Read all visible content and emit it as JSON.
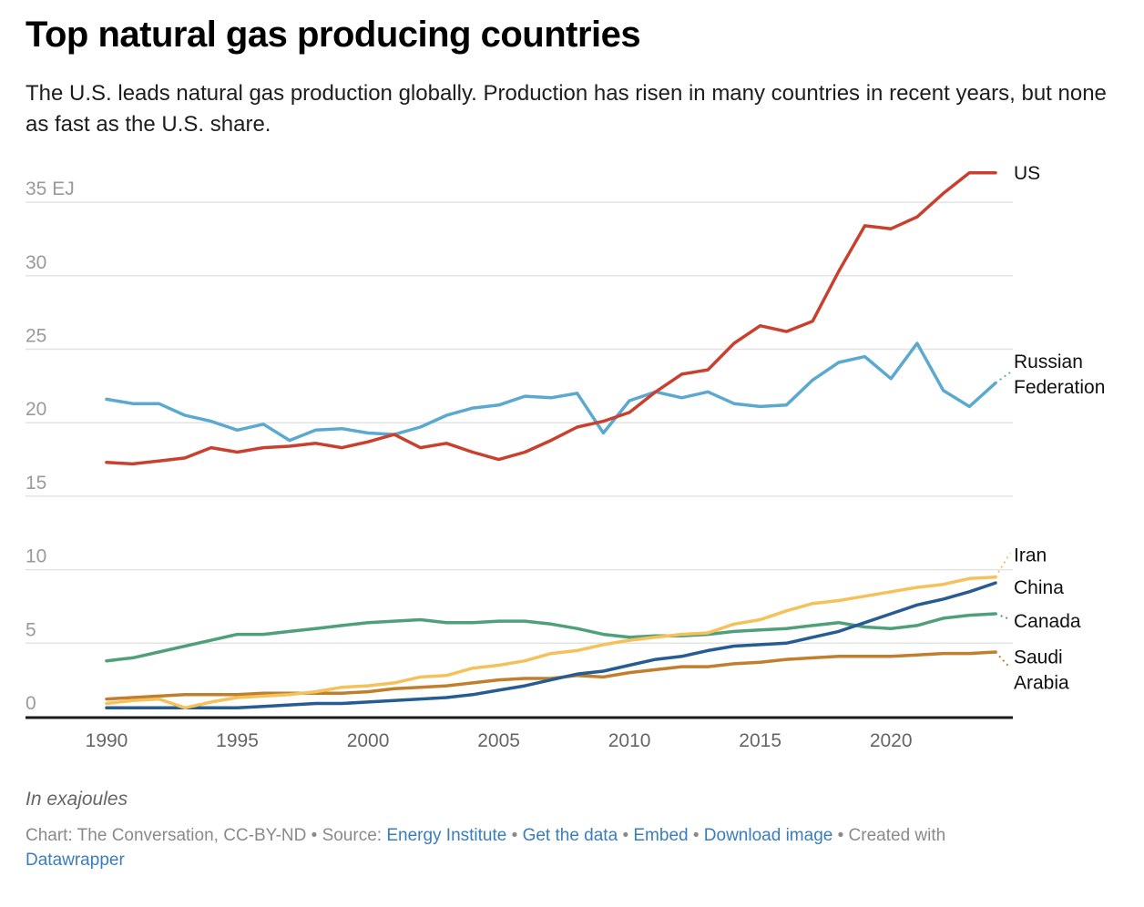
{
  "header": {
    "title": "Top natural gas producing countries",
    "subtitle": "The U.S. leads natural gas production globally. Production has risen in many countries in recent years, but none as fast as the U.S. share."
  },
  "notes": "In exajoules",
  "footer": {
    "chart_credit": "Chart: The Conversation, CC-BY-ND",
    "source_label": "Source:",
    "source_link": "Energy Institute",
    "get_data": "Get the data",
    "embed": "Embed",
    "download": "Download image",
    "created_with": "Created with",
    "datawrapper": "Datawrapper",
    "separator": "•"
  },
  "chart_data": {
    "type": "line",
    "title": "Top natural gas producing countries",
    "xlabel": "",
    "ylabel": "EJ",
    "unit_suffix": "EJ",
    "x": [
      1990,
      1991,
      1992,
      1993,
      1994,
      1995,
      1996,
      1997,
      1998,
      1999,
      2000,
      2001,
      2002,
      2003,
      2004,
      2005,
      2006,
      2007,
      2008,
      2009,
      2010,
      2011,
      2012,
      2013,
      2014,
      2015,
      2016,
      2017,
      2018,
      2019,
      2020,
      2021,
      2022,
      2023,
      2024
    ],
    "xlim": [
      1990,
      2024
    ],
    "ylim": [
      0,
      36.5
    ],
    "xticks": [
      1990,
      1995,
      2000,
      2005,
      2010,
      2015,
      2020
    ],
    "yticks": [
      0,
      5,
      10,
      15,
      20,
      25,
      30,
      35
    ],
    "ytick_labels": [
      "0",
      "5",
      "10",
      "15",
      "20",
      "25",
      "30",
      "35 EJ"
    ],
    "grid": true,
    "legend": "direct labels at line ends (right)",
    "series": [
      {
        "name": "US",
        "label": "US",
        "color": "#c9402f",
        "values": [
          17.3,
          17.2,
          17.4,
          17.6,
          18.3,
          18.0,
          18.3,
          18.4,
          18.6,
          18.3,
          18.7,
          19.2,
          18.3,
          18.6,
          18.0,
          17.5,
          18.0,
          18.8,
          19.7,
          20.1,
          20.7,
          22.1,
          23.3,
          23.6,
          25.4,
          26.6,
          26.2,
          26.9,
          30.3,
          33.4,
          33.2,
          34.0,
          35.6,
          37.0,
          37.0
        ]
      },
      {
        "name": "Russian Federation",
        "label": "Russian\nFederation",
        "color": "#5ba9cf",
        "values": [
          21.6,
          21.3,
          21.3,
          20.5,
          20.1,
          19.5,
          19.9,
          18.8,
          19.5,
          19.6,
          19.3,
          19.2,
          19.7,
          20.5,
          21.0,
          21.2,
          21.8,
          21.7,
          22.0,
          19.3,
          21.5,
          22.1,
          21.7,
          22.1,
          21.3,
          21.1,
          21.2,
          22.9,
          24.1,
          24.5,
          23.0,
          25.4,
          22.2,
          21.1,
          22.7
        ]
      },
      {
        "name": "Iran",
        "label": "Iran",
        "color": "#f4c15a",
        "values": [
          0.9,
          1.1,
          1.2,
          0.6,
          1.0,
          1.3,
          1.4,
          1.5,
          1.7,
          2.0,
          2.1,
          2.3,
          2.7,
          2.8,
          3.3,
          3.5,
          3.8,
          4.3,
          4.5,
          4.9,
          5.2,
          5.4,
          5.6,
          5.7,
          6.3,
          6.6,
          7.2,
          7.7,
          7.9,
          8.2,
          8.5,
          8.8,
          9.0,
          9.4,
          9.5
        ]
      },
      {
        "name": "China",
        "label": "China",
        "color": "#275c92",
        "values": [
          0.6,
          0.6,
          0.6,
          0.6,
          0.6,
          0.6,
          0.7,
          0.8,
          0.9,
          0.9,
          1.0,
          1.1,
          1.2,
          1.3,
          1.5,
          1.8,
          2.1,
          2.5,
          2.9,
          3.1,
          3.5,
          3.9,
          4.1,
          4.5,
          4.8,
          4.9,
          5.0,
          5.4,
          5.8,
          6.4,
          7.0,
          7.6,
          8.0,
          8.5,
          9.1
        ]
      },
      {
        "name": "Canada",
        "label": "Canada",
        "color": "#4fa07a",
        "values": [
          3.8,
          4.0,
          4.4,
          4.8,
          5.2,
          5.6,
          5.6,
          5.8,
          6.0,
          6.2,
          6.4,
          6.5,
          6.6,
          6.4,
          6.4,
          6.5,
          6.5,
          6.3,
          6.0,
          5.6,
          5.4,
          5.5,
          5.5,
          5.6,
          5.8,
          5.9,
          6.0,
          6.2,
          6.4,
          6.1,
          6.0,
          6.2,
          6.7,
          6.9,
          7.0
        ]
      },
      {
        "name": "Saudi Arabia",
        "label": "Saudi\nArabia",
        "color": "#c17f2e",
        "values": [
          1.2,
          1.3,
          1.4,
          1.5,
          1.5,
          1.5,
          1.6,
          1.6,
          1.6,
          1.6,
          1.7,
          1.9,
          2.0,
          2.1,
          2.3,
          2.5,
          2.6,
          2.6,
          2.8,
          2.7,
          3.0,
          3.2,
          3.4,
          3.4,
          3.6,
          3.7,
          3.9,
          4.0,
          4.1,
          4.1,
          4.1,
          4.2,
          4.3,
          4.3,
          4.4
        ]
      }
    ]
  }
}
